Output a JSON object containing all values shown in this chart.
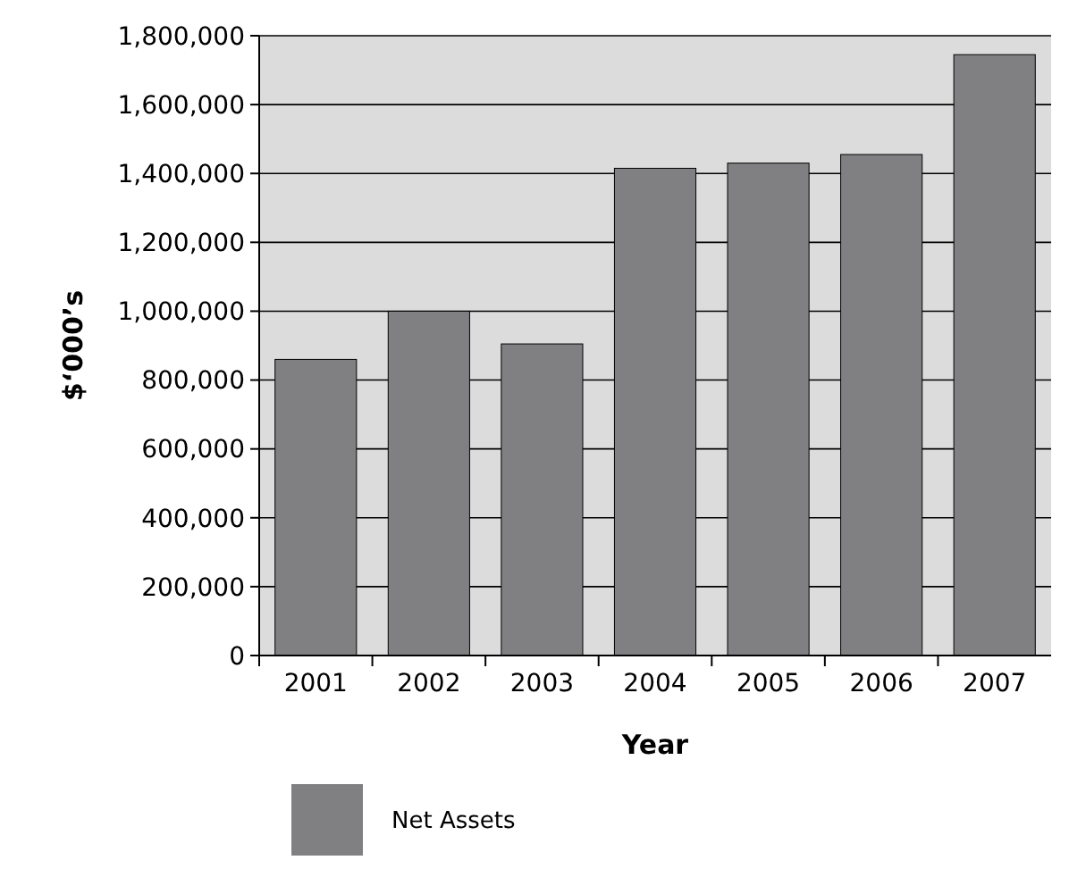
{
  "chart_data": {
    "type": "bar",
    "xlabel": "Year",
    "ylabel": "$‘000’s",
    "categories": [
      "2001",
      "2002",
      "2003",
      "2004",
      "2005",
      "2006",
      "2007"
    ],
    "series": [
      {
        "name": "Net Assets",
        "color": "#808083",
        "values": [
          860000,
          1000000,
          905000,
          1415000,
          1430000,
          1455000,
          1745000
        ]
      }
    ],
    "ylim": [
      0,
      1800000
    ],
    "yticks": [
      {
        "value": 0,
        "label": "0"
      },
      {
        "value": 200000,
        "label": "200,000"
      },
      {
        "value": 400000,
        "label": "400,000"
      },
      {
        "value": 600000,
        "label": "600,000"
      },
      {
        "value": 800000,
        "label": "800,000"
      },
      {
        "value": 1000000,
        "label": "1,000,000"
      },
      {
        "value": 1200000,
        "label": "1,200,000"
      },
      {
        "value": 1400000,
        "label": "1,400,000"
      },
      {
        "value": 1600000,
        "label": "1,600,000"
      },
      {
        "value": 1800000,
        "label": "1,800,000"
      }
    ],
    "grid": "y",
    "legend": "bottom left"
  }
}
